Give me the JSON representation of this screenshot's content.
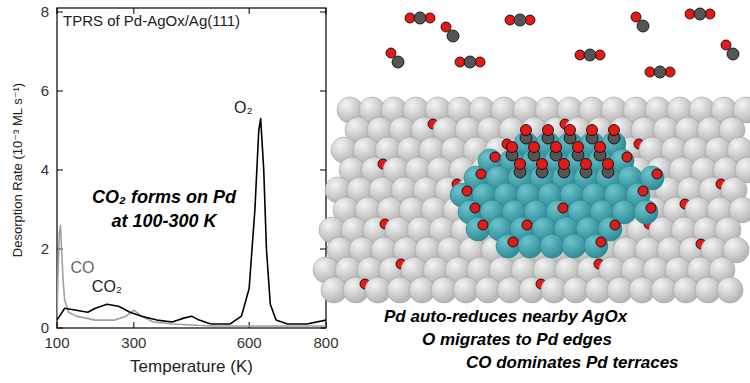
{
  "chart_data": {
    "type": "line",
    "title": "TPRS of Pd-AgOx/Ag(111)",
    "x_label": "Temperature (K)",
    "y_label": "Desorption Rate (10⁻³ ML s⁻¹)",
    "annotations": [
      "CO₂ forms on Pd",
      "at 100-300 K"
    ],
    "xlim": [
      100,
      800
    ],
    "xticks": [
      100,
      300,
      600,
      800
    ],
    "ylim": [
      0,
      8
    ],
    "yticks": [
      0,
      2,
      4,
      6,
      8
    ],
    "grid": false,
    "series": [
      {
        "name": "CO",
        "color": "#a0a0a0",
        "x": [
          100,
          103,
          106,
          109,
          112,
          116,
          120,
          130,
          150,
          200,
          250,
          280,
          300,
          320,
          350,
          400,
          500,
          600,
          800
        ],
        "values": [
          0.3,
          1.5,
          2.4,
          2.6,
          2.0,
          1.2,
          0.7,
          0.4,
          0.3,
          0.2,
          0.2,
          0.3,
          0.45,
          0.3,
          0.15,
          0.1,
          0.05,
          0.05,
          0.05
        ]
      },
      {
        "name": "CO₂",
        "color": "#000000",
        "x": [
          100,
          120,
          150,
          180,
          200,
          230,
          260,
          290,
          320,
          360,
          400,
          430,
          450,
          470,
          500
        ],
        "values": [
          0.2,
          0.5,
          0.45,
          0.4,
          0.5,
          0.6,
          0.55,
          0.4,
          0.3,
          0.2,
          0.15,
          0.25,
          0.3,
          0.2,
          0.1
        ]
      },
      {
        "name": "O₂",
        "color": "#000000",
        "x": [
          500,
          550,
          580,
          600,
          615,
          625,
          630,
          638,
          645,
          655,
          670,
          700,
          750,
          800
        ],
        "values": [
          0.1,
          0.1,
          0.3,
          1.0,
          3.0,
          5.0,
          5.3,
          4.0,
          2.0,
          0.6,
          0.2,
          0.1,
          0.1,
          0.2
        ]
      }
    ]
  },
  "illustration": {
    "captions": [
      "Pd auto-reduces nearby AgOx",
      "O migrates to Pd edges",
      "CO dominates Pd terraces"
    ]
  }
}
